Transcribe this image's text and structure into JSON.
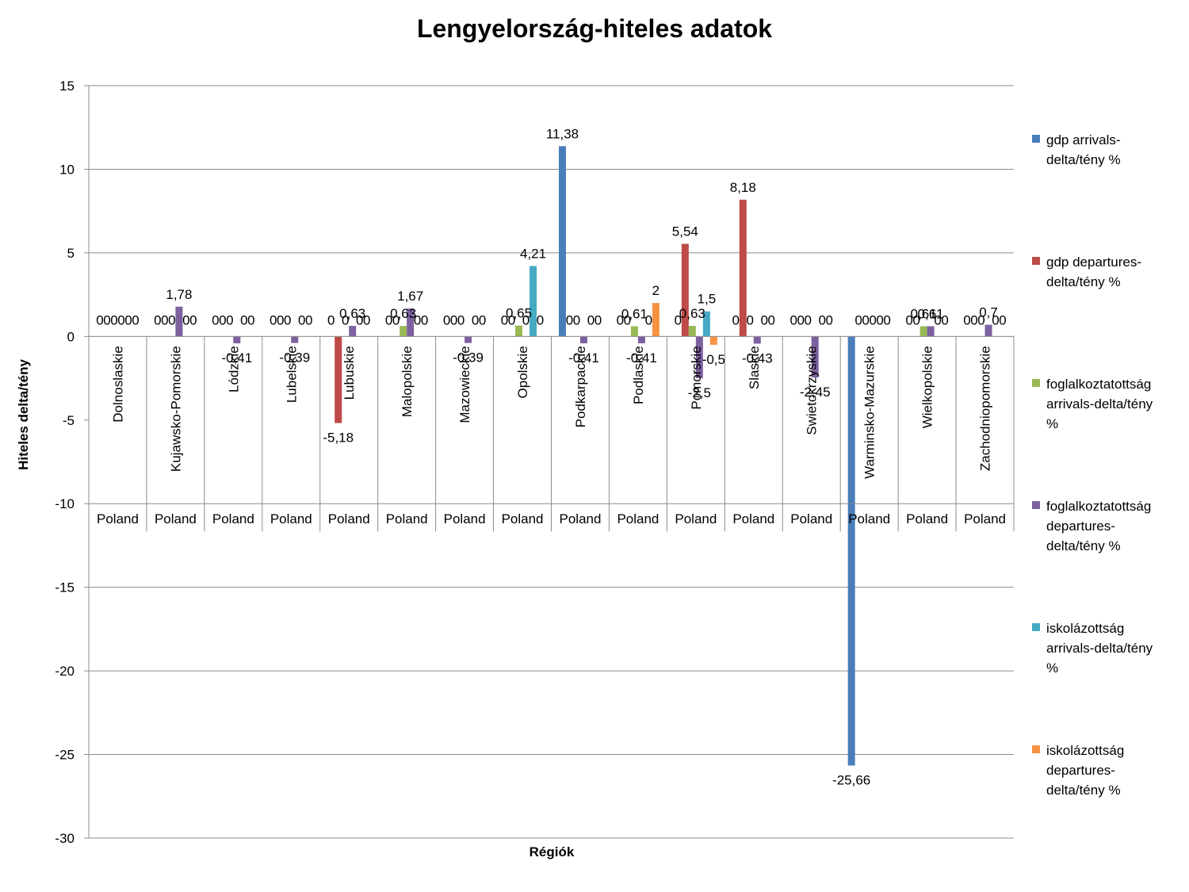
{
  "chart_data": {
    "type": "bar",
    "title": "Lengyelország-hiteles adatok",
    "xlabel": "Régiók",
    "ylabel": "Hiteles delta/tény",
    "ylim": [
      -30,
      15
    ],
    "yticks": [
      15,
      10,
      5,
      0,
      -5,
      -10,
      -15,
      -20,
      -25,
      -30
    ],
    "grid": true,
    "legend_position": "right",
    "categories": [
      "Dolnoslaskie",
      "Kujawsko-Pomorskie",
      "Lódzkie",
      "Lubelskie",
      "Lubuskie",
      "Malopolskie",
      "Mazowieckie",
      "Opolskie",
      "Podkarpackie",
      "Podlaskie",
      "Pomorskie",
      "Slaskie",
      "Swietokrzyskie",
      "Warminsko-Mazurskie",
      "Wielkopolskie",
      "Zachodniopomorskie"
    ],
    "group_labels": [
      "Poland",
      "Poland",
      "Poland",
      "Poland",
      "Poland",
      "Poland",
      "Poland",
      "Poland",
      "Poland",
      "Poland",
      "Poland",
      "Poland",
      "Poland",
      "Poland",
      "Poland",
      "Poland"
    ],
    "series": [
      {
        "name": "gdp arrivals-delta/tény %",
        "color": "#4A7EBB",
        "values": [
          0,
          0,
          0,
          0,
          0,
          0,
          0,
          0,
          11.38,
          0,
          0,
          0,
          0,
          -25.66,
          0,
          0
        ]
      },
      {
        "name": "gdp departures-delta/tény %",
        "color": "#BE4B48",
        "values": [
          0,
          0,
          0,
          0,
          -5.18,
          0,
          0,
          0,
          0,
          0,
          5.54,
          8.18,
          0,
          0,
          0,
          0
        ]
      },
      {
        "name": "foglalkoztatottság arrivals-delta/tény %",
        "color": "#98B954",
        "values": [
          0,
          0,
          0,
          0,
          0,
          0.63,
          0,
          0.65,
          0,
          0.61,
          0.63,
          0,
          0,
          0,
          0.61,
          0
        ]
      },
      {
        "name": "foglalkoztatottság departures-delta/tény %",
        "color": "#7D60A0",
        "values": [
          0,
          1.78,
          -0.41,
          -0.39,
          0.63,
          1.67,
          -0.39,
          0,
          -0.41,
          -0.41,
          -2.5,
          -0.43,
          -2.45,
          0,
          0.61,
          0.7
        ]
      },
      {
        "name": "iskolázottság arrivals-delta/tény %",
        "color": "#46AAC5",
        "values": [
          0,
          0,
          0,
          0,
          0,
          0,
          0,
          4.21,
          0,
          0,
          1.5,
          0,
          0,
          0,
          0,
          0
        ]
      },
      {
        "name": "iskolázottság departures-delta/tény %",
        "color": "#F69240",
        "values": [
          0,
          0,
          0,
          0,
          0,
          0,
          0,
          0,
          0,
          2,
          -0.5,
          0,
          0,
          0,
          0,
          0
        ]
      }
    ],
    "data_labels": [
      [
        "0",
        "0",
        "0",
        "0",
        "0",
        "0"
      ],
      [
        "0",
        "0",
        "0",
        "1,78",
        "0",
        "0"
      ],
      [
        "0",
        "0",
        "0",
        "-0,41",
        "0",
        "0"
      ],
      [
        "0",
        "0",
        "0",
        "-0,39",
        "0",
        "0"
      ],
      [
        "0",
        "-5,18",
        "0",
        "0,63",
        "0",
        "0"
      ],
      [
        "0",
        "0",
        "0,63",
        "1,67",
        "0",
        "0"
      ],
      [
        "0",
        "0",
        "0",
        "-0,39",
        "0",
        "0"
      ],
      [
        "0",
        "0",
        "0,65",
        "0",
        "4,21",
        "0"
      ],
      [
        "11,38",
        "0",
        "0",
        "-0,41",
        "0",
        "0"
      ],
      [
        "0",
        "0",
        "0,61",
        "-0,41",
        "0",
        "2"
      ],
      [
        "0",
        "5,54",
        "0,63",
        "-2,5",
        "1,5",
        "-0,5"
      ],
      [
        "0",
        "8,18",
        "0",
        "-0,43",
        "0",
        "0"
      ],
      [
        "0",
        "0",
        "0",
        "-2,45",
        "0",
        "0"
      ],
      [
        "-25,66",
        "0",
        "0",
        "0",
        "0",
        "0"
      ],
      [
        "0",
        "0",
        "0,61",
        "0,61",
        "0",
        "0"
      ],
      [
        "0",
        "0",
        "0",
        "0,7",
        "0",
        "0"
      ]
    ]
  }
}
